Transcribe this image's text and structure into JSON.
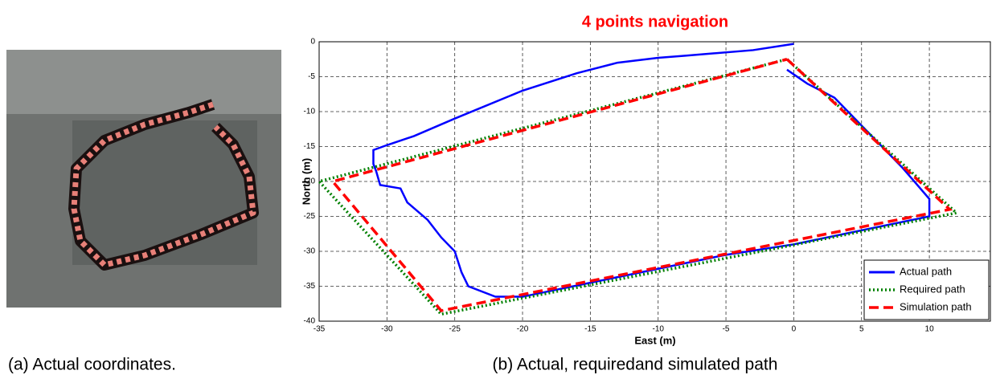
{
  "captions": [
    "(a) Actual coordinates.",
    "(b) Actual, requiredand simulated path"
  ],
  "chart_data": {
    "type": "line",
    "title": "4 points navigation",
    "xlabel": "East (m)",
    "ylabel": "North (m)",
    "xlim": [
      -35,
      14.5
    ],
    "ylim": [
      -40,
      0
    ],
    "xticks": [
      -35,
      -30,
      -25,
      -20,
      -15,
      -10,
      -5,
      0,
      5,
      10
    ],
    "yticks": [
      -40,
      -35,
      -30,
      -25,
      -20,
      -15,
      -10,
      -5,
      0
    ],
    "grid": true,
    "legend": "lower right",
    "series": [
      {
        "name": "Actual path",
        "color": "#0000ff",
        "style": "solid",
        "x": [
          0,
          -3,
          -8,
          -10,
          -13,
          -16,
          -20,
          -25,
          -28,
          -30,
          -31,
          -31,
          -30.8,
          -30.5,
          -29,
          -28.5,
          -27,
          -26,
          -25,
          -24.5,
          -24,
          -22,
          -20,
          -15,
          -10,
          -5,
          0,
          5,
          10,
          10,
          8,
          6,
          5,
          3,
          1,
          -0.5
        ],
        "values": [
          -0.3,
          -1.2,
          -2,
          -2.3,
          -3,
          -4.5,
          -7,
          -11,
          -13.5,
          -14.8,
          -15.5,
          -17.5,
          -18.5,
          -20.5,
          -21,
          -23,
          -25.5,
          -28,
          -30,
          -33,
          -35,
          -36.5,
          -36.5,
          -34.5,
          -32.5,
          -30.5,
          -29,
          -27,
          -25,
          -22.5,
          -18,
          -14,
          -12,
          -8,
          -6,
          -4
        ]
      },
      {
        "name": "Required path",
        "color": "#008000",
        "style": "dotted",
        "x": [
          -0.5,
          12,
          -26,
          -35,
          -0.5
        ],
        "values": [
          -2.5,
          -24.5,
          -39,
          -20,
          -2.5
        ]
      },
      {
        "name": "Simulation path",
        "color": "#ff0000",
        "style": "dashed",
        "x": [
          -0.5,
          11.5,
          -26,
          -34,
          -0.5
        ],
        "values": [
          -2.5,
          -24,
          -38.5,
          -20,
          -2.5
        ]
      }
    ]
  }
}
